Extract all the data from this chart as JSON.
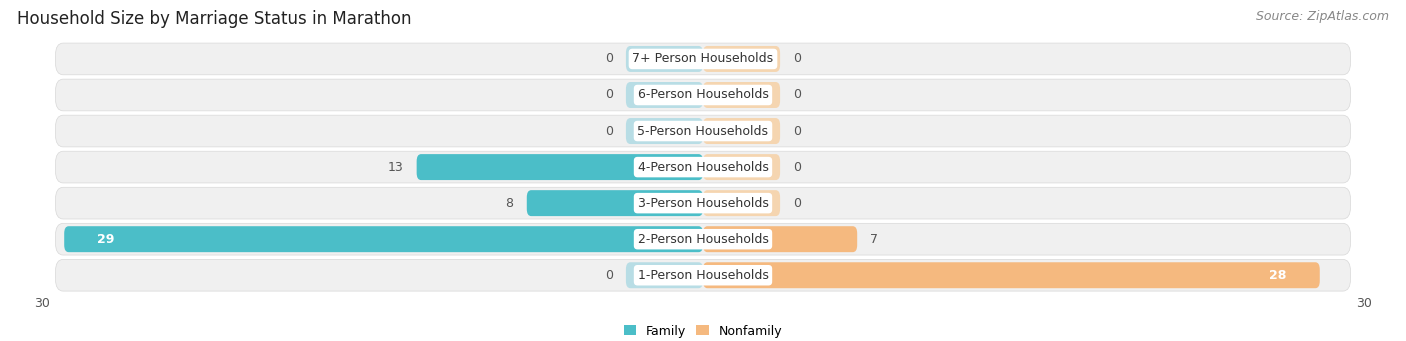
{
  "title": "Household Size by Marriage Status in Marathon",
  "source": "Source: ZipAtlas.com",
  "categories": [
    "7+ Person Households",
    "6-Person Households",
    "5-Person Households",
    "4-Person Households",
    "3-Person Households",
    "2-Person Households",
    "1-Person Households"
  ],
  "family": [
    0,
    0,
    0,
    13,
    8,
    29,
    0
  ],
  "nonfamily": [
    0,
    0,
    0,
    0,
    0,
    7,
    28
  ],
  "family_color": "#4BBEC8",
  "nonfamily_color": "#F5B97F",
  "nonfamily_stub_color": "#F5D5B0",
  "bg_color": "#ffffff",
  "row_bg_color": "#f0f0f0",
  "row_border_color": "#d8d8d8",
  "xlim": 30,
  "stub_size": 3.5,
  "title_fontsize": 12,
  "source_fontsize": 9,
  "tick_fontsize": 9,
  "label_fontsize": 9
}
